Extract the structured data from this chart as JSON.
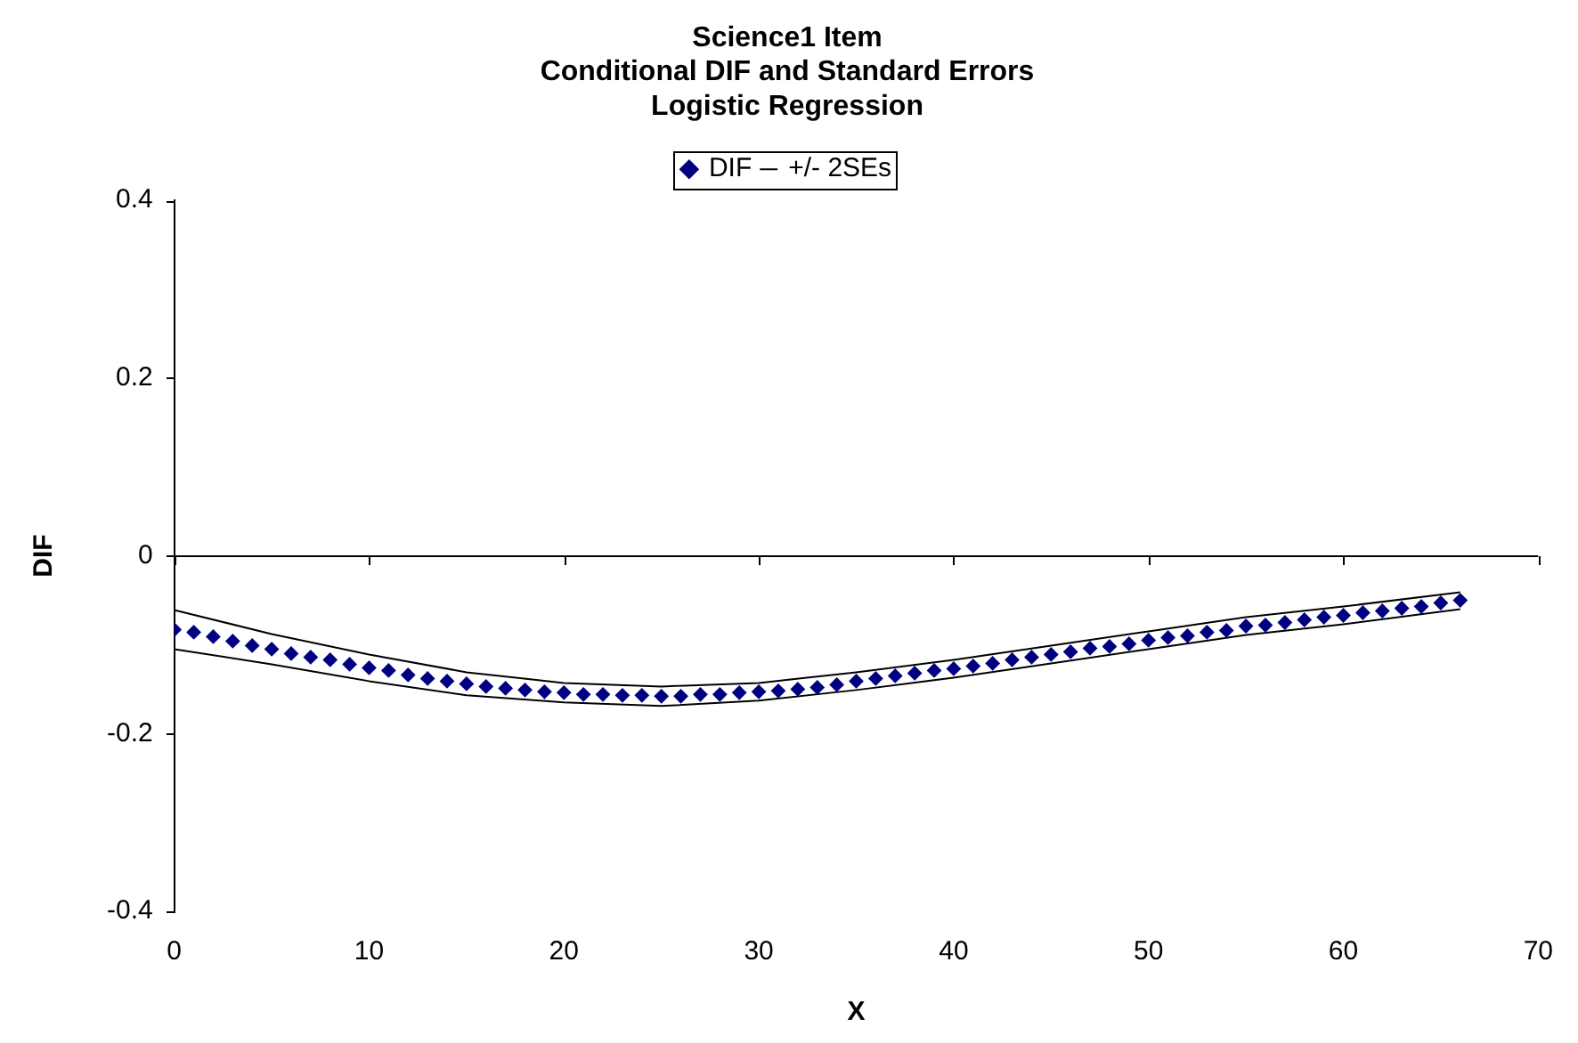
{
  "chart_data": {
    "type": "scatter",
    "title": "Science1 Item\nConditional DIF and Standard Errors\nLogistic Regression",
    "xlabel": "X",
    "ylabel": "DIF",
    "xlim": [
      0,
      70
    ],
    "xticks": [
      0,
      10,
      20,
      30,
      40,
      50,
      60,
      70
    ],
    "ylim": [
      -0.4,
      0.4
    ],
    "yticks": [
      -0.4,
      -0.2,
      0,
      0.2,
      0.4
    ],
    "legend": "top",
    "marker": "diamond",
    "x": [
      0,
      1,
      2,
      3,
      4,
      5,
      6,
      7,
      8,
      9,
      10,
      11,
      12,
      13,
      14,
      15,
      16,
      17,
      18,
      19,
      20,
      21,
      22,
      23,
      24,
      25,
      26,
      27,
      28,
      29,
      30,
      31,
      32,
      33,
      34,
      35,
      36,
      37,
      38,
      39,
      40,
      41,
      42,
      43,
      44,
      45,
      46,
      47,
      48,
      49,
      50,
      51,
      52,
      53,
      54,
      55,
      56,
      57,
      58,
      59,
      60,
      61,
      62,
      63,
      64,
      65,
      66
    ],
    "series": [
      {
        "name": "DIF",
        "color": "#000080",
        "values": [
          -0.083,
          -0.086,
          -0.091,
          -0.096,
          -0.101,
          -0.105,
          -0.11,
          -0.114,
          -0.117,
          -0.122,
          -0.126,
          -0.129,
          -0.134,
          -0.138,
          -0.141,
          -0.144,
          -0.147,
          -0.149,
          -0.151,
          -0.153,
          -0.154,
          -0.156,
          -0.156,
          -0.157,
          -0.157,
          -0.158,
          -0.158,
          -0.156,
          -0.156,
          -0.154,
          -0.153,
          -0.152,
          -0.15,
          -0.148,
          -0.145,
          -0.141,
          -0.138,
          -0.135,
          -0.132,
          -0.129,
          -0.127,
          -0.124,
          -0.121,
          -0.117,
          -0.114,
          -0.111,
          -0.108,
          -0.104,
          -0.102,
          -0.099,
          -0.095,
          -0.092,
          -0.09,
          -0.086,
          -0.084,
          -0.079,
          -0.078,
          -0.075,
          -0.072,
          -0.069,
          -0.067,
          -0.064,
          -0.062,
          -0.059,
          -0.057,
          -0.053,
          -0.05
        ]
      },
      {
        "name": "+/- 2SEs",
        "type": "line",
        "marker": "none",
        "line_style": "solid",
        "color": "#000000",
        "x": [
          0,
          5,
          10,
          15,
          20,
          25,
          30,
          35,
          40,
          45,
          50,
          55,
          60,
          66
        ],
        "values": [
          -0.061,
          -0.088,
          -0.111,
          -0.131,
          -0.143,
          -0.147,
          -0.143,
          -0.131,
          -0.117,
          -0.101,
          -0.085,
          -0.069,
          -0.057,
          -0.041
        ]
      },
      {
        "type": "line",
        "marker": "none",
        "line_style": "solid",
        "color": "#000000",
        "x": [
          0,
          5,
          10,
          15,
          20,
          25,
          30,
          35,
          40,
          45,
          50,
          55,
          60,
          66
        ],
        "values": [
          -0.105,
          -0.122,
          -0.141,
          -0.157,
          -0.165,
          -0.169,
          -0.163,
          -0.151,
          -0.137,
          -0.121,
          -0.105,
          -0.089,
          -0.077,
          -0.06
        ]
      }
    ]
  }
}
